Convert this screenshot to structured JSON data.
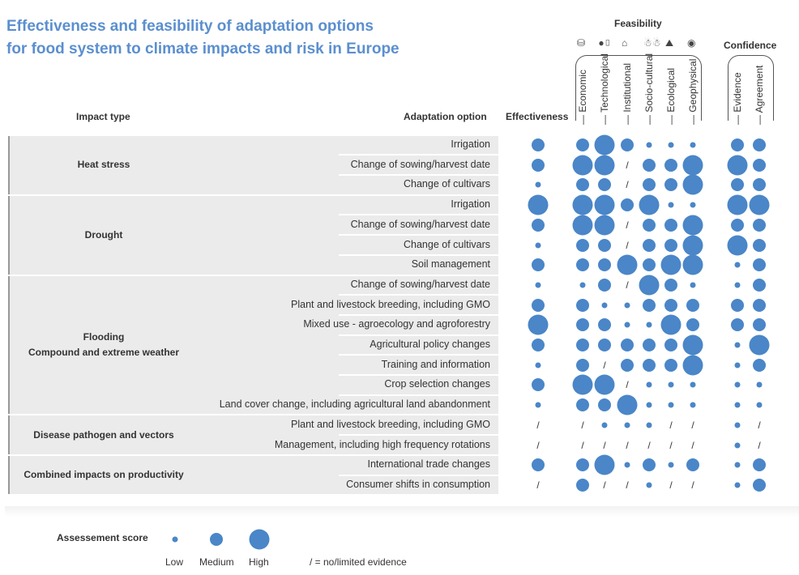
{
  "title_line1": "Effectiveness and feasibility of adaptation options",
  "title_line2": "for food system to climate impacts and risk in Europe",
  "headers": {
    "impact_type": "Impact type",
    "adaptation_option": "Adaptation option",
    "effectiveness": "Effectiveness",
    "feasibility": "Feasibility",
    "confidence": "Confidence"
  },
  "feasibility_columns": [
    "Economic",
    "Technological",
    "Institutional",
    "Socio-cultural",
    "Ecological",
    "Geophysical"
  ],
  "confidence_columns": [
    "Evidence",
    "Agreement"
  ],
  "feasibility_icons": [
    "coins-icon",
    "phone-signal-icon",
    "institution-icon",
    "people-icon",
    "ecosystem-icon",
    "globe-icon"
  ],
  "groups": [
    {
      "name": "Heat stress",
      "rows": 3
    },
    {
      "name": "Drought",
      "rows": 4
    },
    {
      "name": "Flooding\nCompound and extreme weather",
      "rows": 7
    },
    {
      "name": "Disease pathogen and vectors",
      "rows": 2
    },
    {
      "name": "Combined impacts on productivity",
      "rows": 2
    }
  ],
  "rows": [
    {
      "option": "Irrigation",
      "scores": [
        "M",
        "M",
        "H",
        "M",
        "L",
        "L",
        "L",
        "M",
        "M"
      ]
    },
    {
      "option": "Change of sowing/harvest date",
      "scores": [
        "M",
        "H",
        "H",
        "/",
        "M",
        "M",
        "H",
        "H",
        "M"
      ]
    },
    {
      "option": "Change of cultivars",
      "scores": [
        "L",
        "M",
        "M",
        "/",
        "M",
        "M",
        "H",
        "M",
        "M"
      ]
    },
    {
      "option": "Irrigation",
      "scores": [
        "H",
        "H",
        "H",
        "M",
        "H",
        "L",
        "L",
        "H",
        "H"
      ]
    },
    {
      "option": "Change of sowing/harvest date",
      "scores": [
        "M",
        "H",
        "H",
        "/",
        "M",
        "M",
        "H",
        "M",
        "M"
      ]
    },
    {
      "option": "Change of cultivars",
      "scores": [
        "L",
        "M",
        "M",
        "/",
        "M",
        "M",
        "H",
        "H",
        "M"
      ]
    },
    {
      "option": "Soil management",
      "scores": [
        "M",
        "M",
        "M",
        "H",
        "M",
        "H",
        "H",
        "L",
        "M"
      ]
    },
    {
      "option": "Change of sowing/harvest date",
      "scores": [
        "L",
        "L",
        "M",
        "/",
        "H",
        "M",
        "L",
        "L",
        "M"
      ]
    },
    {
      "option": "Plant and livestock breeding, including GMO",
      "scores": [
        "M",
        "M",
        "L",
        "L",
        "M",
        "M",
        "M",
        "M",
        "M"
      ]
    },
    {
      "option": "Mixed use - agroecology and agroforestry",
      "scores": [
        "H",
        "M",
        "M",
        "L",
        "L",
        "H",
        "M",
        "M",
        "M"
      ]
    },
    {
      "option": "Agricultural policy changes",
      "scores": [
        "M",
        "M",
        "M",
        "M",
        "M",
        "M",
        "H",
        "L",
        "H"
      ]
    },
    {
      "option": "Training and information",
      "scores": [
        "L",
        "M",
        "/",
        "M",
        "M",
        "M",
        "H",
        "L",
        "M"
      ]
    },
    {
      "option": "Crop selection changes",
      "scores": [
        "M",
        "H",
        "H",
        "/",
        "L",
        "L",
        "L",
        "L",
        "L"
      ]
    },
    {
      "option": "Land cover change, including agricultural land abandonment",
      "scores": [
        "L",
        "M",
        "M",
        "H",
        "L",
        "L",
        "L",
        "L",
        "L"
      ]
    },
    {
      "option": "Plant and livestock breeding, including GMO",
      "scores": [
        "/",
        "/",
        "L",
        "L",
        "L",
        "/",
        "/",
        "L",
        "/"
      ]
    },
    {
      "option": "Management, including high frequency rotations",
      "scores": [
        "/",
        "/",
        "/",
        "/",
        "/",
        "/",
        "/",
        "L",
        "/"
      ]
    },
    {
      "option": "International trade changes",
      "scores": [
        "M",
        "M",
        "H",
        "L",
        "M",
        "L",
        "M",
        "L",
        "M"
      ]
    },
    {
      "option": "Consumer shifts in consumption",
      "scores": [
        "/",
        "M",
        "/",
        "/",
        "L",
        "/",
        "/",
        "L",
        "M"
      ]
    }
  ],
  "legend": {
    "title": "Assessement score",
    "low": "Low",
    "medium": "Medium",
    "high": "High",
    "slash_note": "/  = no/limited evidence"
  },
  "colors": {
    "dot": "#4a86c8",
    "title": "#5b8fcf",
    "band": "#ebebeb"
  }
}
